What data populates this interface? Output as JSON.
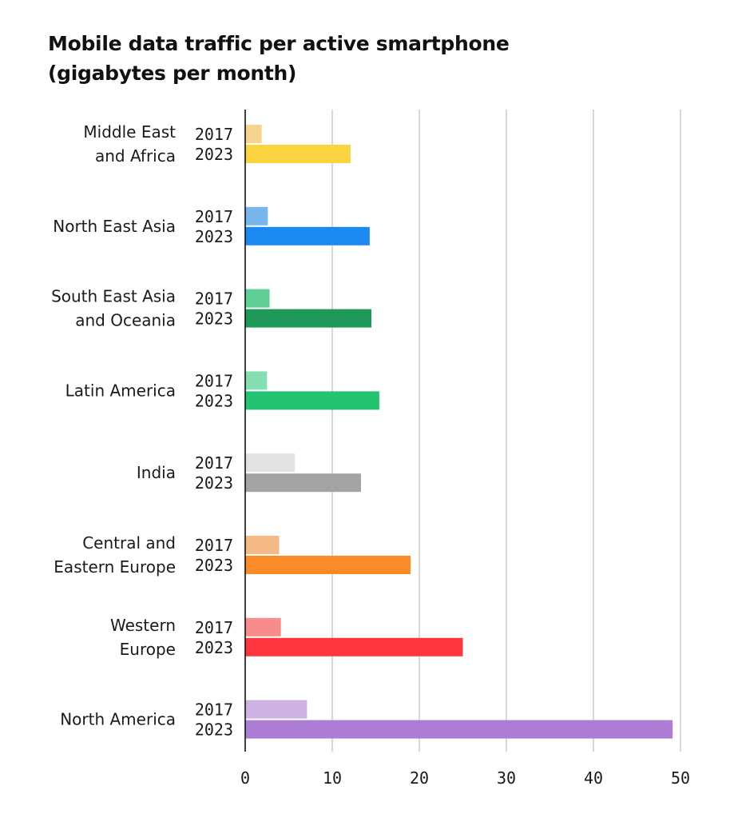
{
  "chart_data": {
    "type": "bar",
    "orientation": "horizontal",
    "title": [
      "Mobile data traffic per active smartphone",
      "(gigabytes per month)"
    ],
    "xlabel": "",
    "ylabel": "",
    "xlim": [
      0,
      50
    ],
    "xticks": [
      "0",
      "10",
      "20",
      "30",
      "40",
      "50"
    ],
    "grid": "vertical",
    "legend": "none",
    "series_names": [
      "2017",
      "2023"
    ],
    "categories": [
      {
        "label": [
          "Middle East",
          "and Africa"
        ],
        "values": [
          1.9,
          12.1
        ],
        "colors": [
          "#f5d48f",
          "#fad43f"
        ]
      },
      {
        "label": [
          "North East Asia"
        ],
        "values": [
          2.6,
          14.3
        ],
        "colors": [
          "#7ab6ee",
          "#1a8af0"
        ]
      },
      {
        "label": [
          "South East Asia",
          "and Oceania"
        ],
        "values": [
          2.8,
          14.5
        ],
        "colors": [
          "#5fcf96",
          "#1f995a"
        ]
      },
      {
        "label": [
          "Latin America"
        ],
        "values": [
          2.5,
          15.4
        ],
        "colors": [
          "#85deb0",
          "#22c472"
        ]
      },
      {
        "label": [
          "India"
        ],
        "values": [
          5.7,
          13.3
        ],
        "colors": [
          "#e3e3e3",
          "#a3a3a3"
        ]
      },
      {
        "label": [
          "Central and",
          "Eastern Europe"
        ],
        "values": [
          3.9,
          19.0
        ],
        "colors": [
          "#f5b986",
          "#fb8a28"
        ]
      },
      {
        "label": [
          "Western",
          "Europe"
        ],
        "values": [
          4.1,
          25.0
        ],
        "colors": [
          "#f88c8c",
          "#ff363d"
        ]
      },
      {
        "label": [
          "North America"
        ],
        "values": [
          7.1,
          49.1
        ],
        "colors": [
          "#ceb2e3",
          "#ab7ed4"
        ]
      }
    ]
  }
}
